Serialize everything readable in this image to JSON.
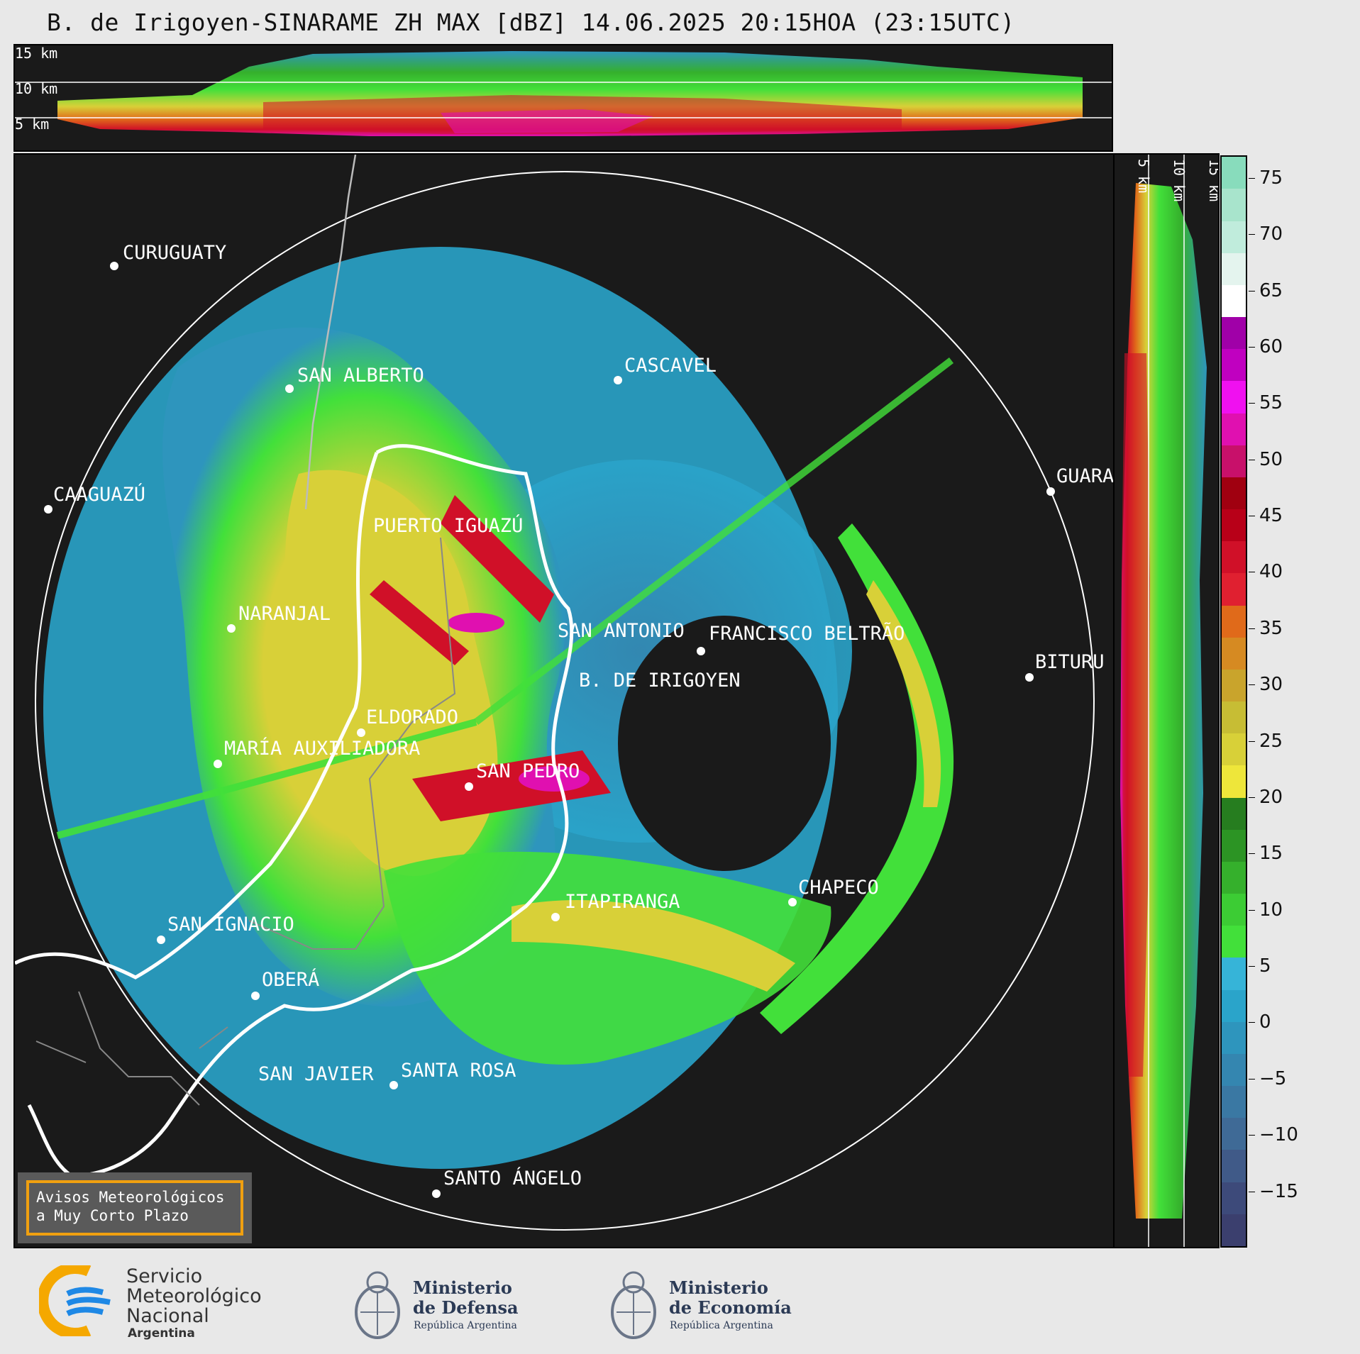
{
  "title": "B. de Irigoyen-SINARAME ZH MAX [dBZ] 14.06.2025 20:15HOA (23:15UTC)",
  "top_panel": {
    "height_labels": [
      "15 km",
      "10 km",
      "5 km"
    ]
  },
  "side_panel": {
    "height_labels": [
      "5 km",
      "10 km",
      "15 km"
    ]
  },
  "cities": [
    {
      "name": "CURUGUATY"
    },
    {
      "name": "SAN ALBERTO"
    },
    {
      "name": "CASCAVEL"
    },
    {
      "name": "CAAGUAZÚ"
    },
    {
      "name": "GUARA"
    },
    {
      "name": "PUERTO IGUAZÚ"
    },
    {
      "name": "NARANJAL"
    },
    {
      "name": "SAN ANTONIO"
    },
    {
      "name": "FRANCISCO BELTRÃO"
    },
    {
      "name": "BITURU"
    },
    {
      "name": "B. DE IRIGOYEN"
    },
    {
      "name": "ELDORADO"
    },
    {
      "name": "MARÍA AUXILIADORA"
    },
    {
      "name": "SAN PEDRO"
    },
    {
      "name": "CHAPECO"
    },
    {
      "name": "ITAPIRANGA"
    },
    {
      "name": "SAN IGNACIO"
    },
    {
      "name": "OBERÁ"
    },
    {
      "name": "SAN JAVIER"
    },
    {
      "name": "SANTA ROSA"
    },
    {
      "name": "SANTO ÁNGELO"
    }
  ],
  "notice": {
    "line1": "Avisos Meteorológicos",
    "line2": "a Muy Corto Plazo"
  },
  "colorbar": {
    "unit": "dBZ",
    "min": -20,
    "max": 77,
    "ticks": [
      75,
      70,
      65,
      60,
      55,
      50,
      45,
      40,
      35,
      30,
      25,
      20,
      15,
      10,
      5,
      0,
      -5,
      -10,
      -15
    ],
    "tick_labels": [
      "75",
      "70",
      "65",
      "60",
      "55",
      "50",
      "45",
      "40",
      "35",
      "30",
      "25",
      "20",
      "15",
      "10",
      "5",
      "0",
      "−5",
      "−10",
      "−15"
    ],
    "colors": [
      "#3b3f6e",
      "#3d4a7a",
      "#405a88",
      "#3f6a96",
      "#3a78a3",
      "#3486b0",
      "#2e95bd",
      "#2aa4ca",
      "#36b4d8",
      "#42e03a",
      "#3ccc34",
      "#35b02c",
      "#2c9424",
      "#267d1f",
      "#eee63a",
      "#d8d038",
      "#c7bd34",
      "#c9a42c",
      "#d68a22",
      "#e06a1a",
      "#e02030",
      "#d01028",
      "#b80018",
      "#a00010",
      "#c8106a",
      "#e010b0",
      "#f010f0",
      "#c000c0",
      "#a000a8",
      "#ffffff",
      "#e4f4ee",
      "#c0ecdc",
      "#a8e4cc",
      "#88dcbc"
    ]
  },
  "footer": {
    "smn": {
      "line1": "Servicio",
      "line2": "Meteorológico",
      "line3": "Nacional",
      "line4": "Argentina"
    },
    "defensa": {
      "line1": "Ministerio",
      "line2": "de Defensa",
      "line3": "República Argentina"
    },
    "economia": {
      "line1": "Ministerio",
      "line2": "de Economía",
      "line3": "República Argentina"
    }
  }
}
